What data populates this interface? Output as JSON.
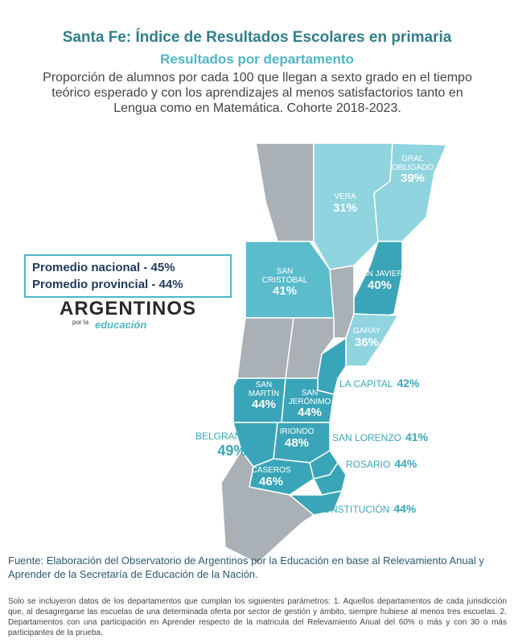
{
  "header": {
    "title": "Santa Fe: Índice de Resultados Escolares en primaria",
    "subtitle": "Resultados por departamento",
    "description": "Proporción de alumnos por cada 100 que llegan a sexto grado en el tiempo teórico esperado y con los aprendizajes al menos satisfactorios tanto en Lengua como en Matemática. Cohorte 2018-2023."
  },
  "averages": [
    "Promedio nacional - 45%",
    "Promedio provincial - 44%"
  ],
  "logo": {
    "main": "ARGENTINOS",
    "small": "por la",
    "script": "educación"
  },
  "departments": [
    {
      "name": "GRAL OBLIGADO",
      "value": "39%"
    },
    {
      "name": "VERA",
      "value": "31%"
    },
    {
      "name": "SAN CRISTÓBAL",
      "value": "41%"
    },
    {
      "name": "SAN JAVIER",
      "value": "40%"
    },
    {
      "name": "GARAY",
      "value": "36%"
    },
    {
      "name": "LA CAPITAL",
      "value": "42%"
    },
    {
      "name": "SAN MARTÍN",
      "value": "44%"
    },
    {
      "name": "SAN JERÓNIMO",
      "value": "44%"
    },
    {
      "name": "BELGRANO",
      "value": "49%"
    },
    {
      "name": "IRIONDO",
      "value": "48%"
    },
    {
      "name": "SAN LORENZO",
      "value": "41%"
    },
    {
      "name": "CASEROS",
      "value": "46%"
    },
    {
      "name": "ROSARIO",
      "value": "44%"
    },
    {
      "name": "CONSTITUCIÓN",
      "value": "44%"
    }
  ],
  "source": "Fuente: Elaboración del Observatorio de Argentinos por la Educación en base al Relevamiento Anual y Aprender de la Secretaría de Educación de la Nación.",
  "note": "Solo se incluyeron datos de los departamentos que cumplan los siguientes parámetros: 1. Aquellos departamentos de cada jurisdicción que, al desagregarse las escuelas de una determinada oferta por sector de gestión y ámbito, siempre hubiese al menos tres escuelas. 2. Departamentos con una participación en Aprender respecto de la matricula del Relevamiento Anual del 60% o más y con 30 o más participantes de la prueba."
}
